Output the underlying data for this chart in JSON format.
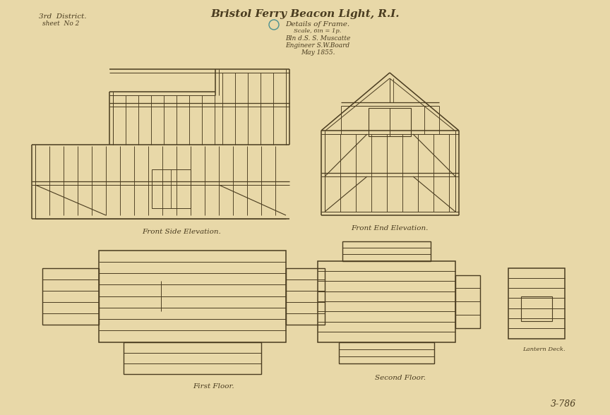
{
  "paper_color": "#e8d8a8",
  "line_color": "#4a3c20",
  "circle_color": "#4a9090",
  "title": "Bristol Ferry Beacon Light, R.I.",
  "subtitle": "Details of Frame.",
  "scale_text": "Scale, 6in = 1p.",
  "sig1": "Bln d.S. S. Muscatte",
  "sig2": "Engineer S.W.Board",
  "sig3": "May 1855.",
  "tl1": "3rd  District.",
  "tl2": "sheet  No 2",
  "cap_side": "Front Side Elevation.",
  "cap_end": "Front End Elevation.",
  "cap_first": "First Floor.",
  "cap_second": "Second Floor.",
  "cap_lantern": "Lantern Deck.",
  "bottom_id": "3-786"
}
